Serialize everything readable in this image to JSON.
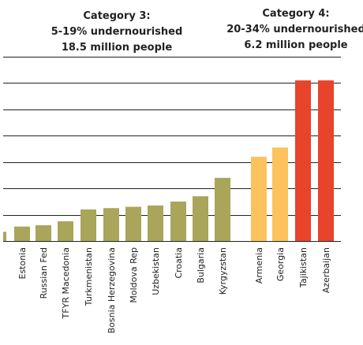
{
  "chart_data": {
    "type": "bar",
    "annotations": [
      {
        "id": "cat3",
        "lines": [
          "Category 3:",
          "5-19% undernourished",
          "18.5 million people"
        ]
      },
      {
        "id": "cat4",
        "lines": [
          "Category 4:",
          "20-34% undernourished",
          "6.2 million people"
        ]
      }
    ],
    "categories": [
      "",
      "Estonia",
      "Russian Fed",
      "TFYR Macedonia",
      "Turkmenistan",
      "Bosnia Herzegovina",
      "Moldova Rep",
      "Uzbekistan",
      "Croatia",
      "Bulgaria",
      "Kyrgyzstan",
      "Armenia",
      "Georgia",
      "Tajikistan",
      "Azerbaijan"
    ],
    "values": [
      3.5,
      5.5,
      6.0,
      7.5,
      12.0,
      12.5,
      13.0,
      13.5,
      15.0,
      17.0,
      24.0,
      32.0,
      35.5,
      61.0,
      61.0
    ],
    "group": [
      "cat3",
      "cat3",
      "cat3",
      "cat3",
      "cat3",
      "cat3",
      "cat3",
      "cat3",
      "cat3",
      "cat3",
      "cat3",
      "cat4",
      "cat4",
      "cat4",
      "cat4"
    ],
    "colors": [
      "#a9a55b",
      "#a9a55b",
      "#a9a55b",
      "#a9a55b",
      "#a9a55b",
      "#a9a55b",
      "#a9a55b",
      "#a9a55b",
      "#a9a55b",
      "#a9a55b",
      "#a9a55b",
      "#fcc25e",
      "#fcc25e",
      "#e8432b",
      "#e8432b"
    ],
    "ylim": [
      0,
      70
    ],
    "grid_step": 10,
    "grid": true,
    "ylabel": "",
    "xlabel": ""
  }
}
